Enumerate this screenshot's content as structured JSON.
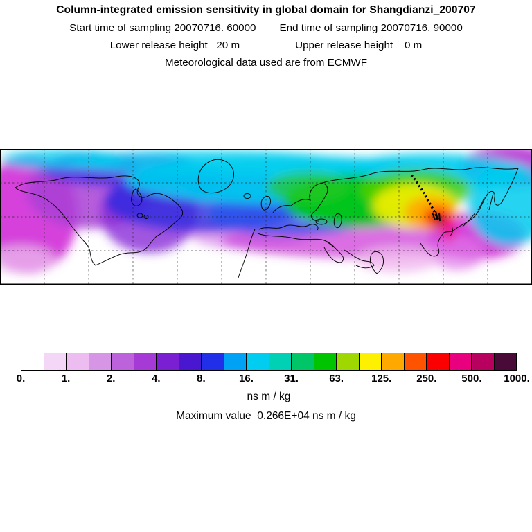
{
  "header": {
    "title": "Column-integrated emission sensitivity in global domain for Shangdianzi_200707",
    "line_start": "Start time of sampling 20070716. 60000",
    "line_end": "End time of sampling 20070716. 90000",
    "line_lower": "Lower release height   20 m",
    "line_upper": "Upper release height    0 m",
    "line_met": "Meteorological data used are from ECMWF"
  },
  "colorbar": {
    "units": "ns m / kg",
    "tick_labels": [
      "0.",
      "1.",
      "2.",
      "4.",
      "8.",
      "16.",
      "31.",
      "63.",
      "125.",
      "250.",
      "500.",
      "1000."
    ],
    "colors": [
      "#ffffff",
      "#f4d7f6",
      "#edbcf0",
      "#d795e6",
      "#bc63dc",
      "#a53ad6",
      "#7b1fd2",
      "#4a17d0",
      "#2130e8",
      "#00a2f5",
      "#00cdef",
      "#00d0b4",
      "#00c667",
      "#00c400",
      "#9ed800",
      "#fdf000",
      "#ffa800",
      "#ff5300",
      "#fb0000",
      "#e8007e",
      "#b8005f",
      "#4a0a38"
    ]
  },
  "footer": {
    "max_value": "Maximum value  0.266E+04 ns m / kg"
  },
  "chart_data": {
    "type": "heatmap",
    "title": "Column-integrated emission sensitivity in global domain for Shangdianzi_200707",
    "station": "Shangdianzi_200707",
    "sampling_start": "20070716. 60000",
    "sampling_end": "20070716. 90000",
    "lower_release_height_m": 20,
    "upper_release_height_m": 0,
    "meteorological_data": "ECMWF",
    "units": "ns m / kg",
    "levels": [
      0,
      1,
      2,
      4,
      8,
      16,
      31,
      63,
      125,
      250,
      500,
      1000
    ],
    "palette": [
      "#ffffff",
      "#f4d7f6",
      "#edbcf0",
      "#d795e6",
      "#bc63dc",
      "#a53ad6",
      "#7b1fd2",
      "#4a17d0",
      "#2130e8",
      "#00a2f5",
      "#00cdef",
      "#00d0b4",
      "#00c667",
      "#00c400",
      "#9ed800",
      "#fdf000",
      "#ffa800",
      "#ff5300",
      "#fb0000",
      "#e8007e",
      "#b8005f",
      "#4a0a38"
    ],
    "max_value_text": "0.266E+04",
    "max_value_numeric": 2660,
    "domain": "global",
    "legend_position": "bottom",
    "grid": true,
    "hotspot_region": "East Asia near Shangdianzi",
    "plume_extent": "Northern Hemisphere: North America, North Atlantic, Europe, Siberia, East Asia"
  }
}
